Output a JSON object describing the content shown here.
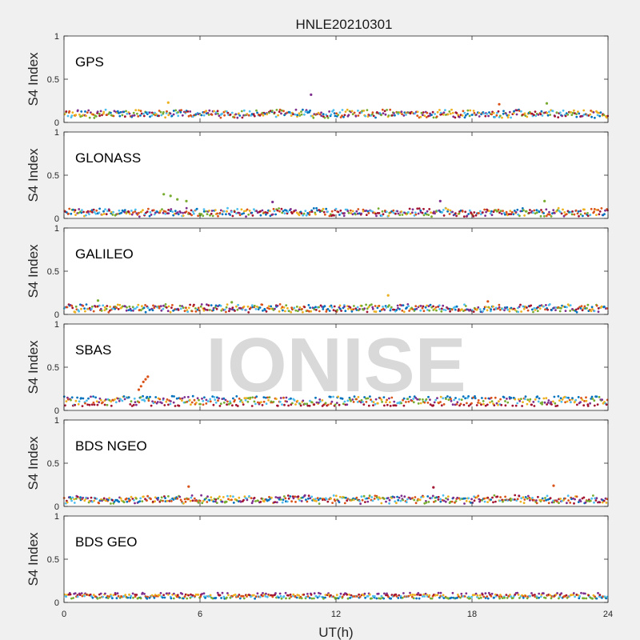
{
  "chart_data": {
    "type": "scatter",
    "title": "HNLE20210301",
    "xlabel": "UT(h)",
    "ylabel": "S4 Index",
    "xlim": [
      0,
      24
    ],
    "ylim": [
      0,
      1
    ],
    "xticks": [
      "0",
      "6",
      "12",
      "18",
      "24"
    ],
    "yticks": [
      "0",
      "0.5",
      "1"
    ],
    "watermark": "IONISE",
    "watermark_panel": 3,
    "colors": [
      "#0072BD",
      "#D95319",
      "#EDB120",
      "#7E2F8E",
      "#77AC30",
      "#4DBEEE",
      "#A2142F"
    ],
    "panels": [
      {
        "label": "GPS",
        "baseline": 0.1,
        "spikes": [
          {
            "x": 10.9,
            "y": 0.32,
            "color": 3
          },
          {
            "x": 4.6,
            "y": 0.23,
            "color": 2
          },
          {
            "x": 19.2,
            "y": 0.21,
            "color": 1
          },
          {
            "x": 21.3,
            "y": 0.22,
            "color": 4
          }
        ]
      },
      {
        "label": "GLONASS",
        "baseline": 0.07,
        "spikes": [
          {
            "x": 4.4,
            "y": 0.28,
            "color": 4
          },
          {
            "x": 4.7,
            "y": 0.26,
            "color": 4
          },
          {
            "x": 5.0,
            "y": 0.22,
            "color": 4
          },
          {
            "x": 5.4,
            "y": 0.2,
            "color": 4
          },
          {
            "x": 9.2,
            "y": 0.19,
            "color": 3
          },
          {
            "x": 16.6,
            "y": 0.2,
            "color": 3
          },
          {
            "x": 21.2,
            "y": 0.2,
            "color": 4
          }
        ]
      },
      {
        "label": "GALILEO",
        "baseline": 0.07,
        "spikes": [
          {
            "x": 1.5,
            "y": 0.16,
            "color": 4
          },
          {
            "x": 7.4,
            "y": 0.14,
            "color": 4
          },
          {
            "x": 14.3,
            "y": 0.22,
            "color": 2
          },
          {
            "x": 18.7,
            "y": 0.15,
            "color": 1
          }
        ]
      },
      {
        "label": "SBAS",
        "baseline": 0.11,
        "spikes": [
          {
            "x": 3.5,
            "y": 0.33,
            "color": 1
          },
          {
            "x": 3.6,
            "y": 0.36,
            "color": 1
          },
          {
            "x": 3.7,
            "y": 0.39,
            "color": 1
          },
          {
            "x": 3.4,
            "y": 0.28,
            "color": 1
          },
          {
            "x": 3.3,
            "y": 0.24,
            "color": 1
          }
        ]
      },
      {
        "label": "BDS NGEO",
        "baseline": 0.08,
        "spikes": [
          {
            "x": 5.5,
            "y": 0.23,
            "color": 1
          },
          {
            "x": 16.3,
            "y": 0.22,
            "color": 6
          },
          {
            "x": 21.6,
            "y": 0.24,
            "color": 1
          }
        ]
      },
      {
        "label": "BDS GEO",
        "baseline": 0.09,
        "spikes": []
      }
    ]
  }
}
